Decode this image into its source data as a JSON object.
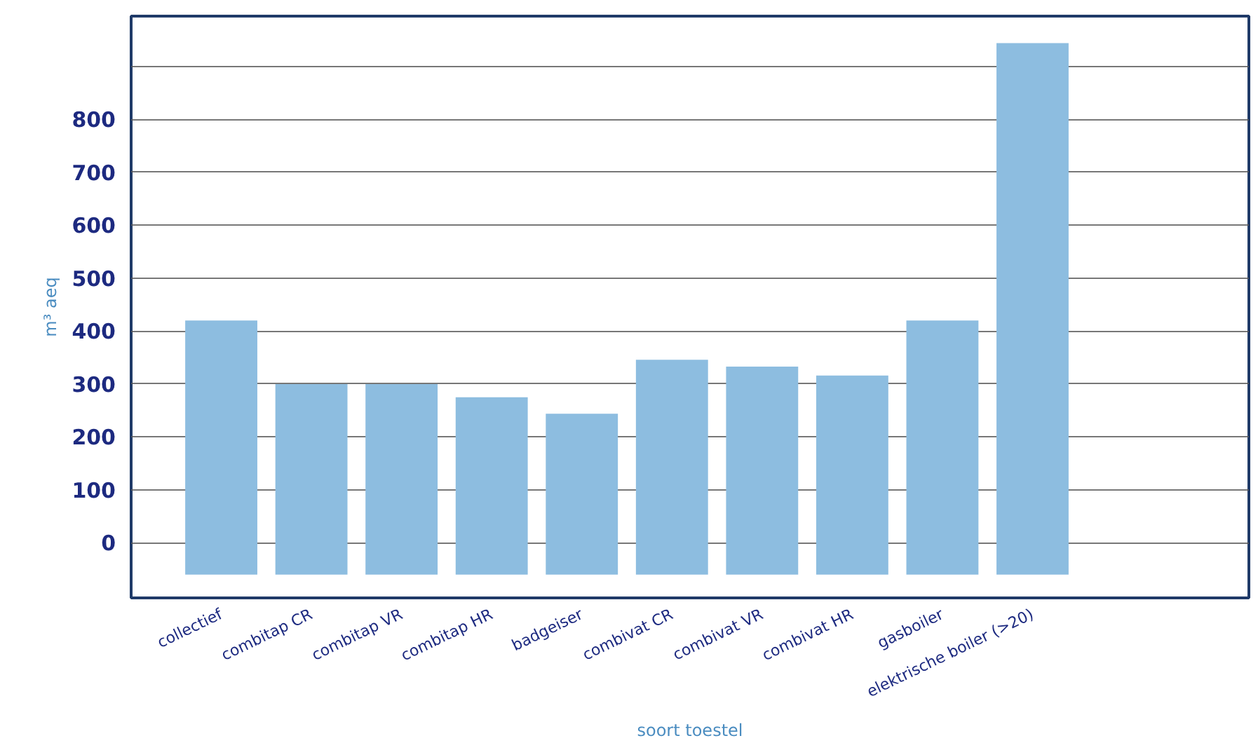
{
  "chart_data": {
    "type": "bar",
    "xlabel": "soort toestel",
    "ylabel": "m³ aeq",
    "categories": [
      "collectief",
      "combitap CR",
      "combitap VR",
      "combitap HR",
      "badgeiser",
      "combivat CR",
      "combivat VR",
      "combivat HR",
      "gasboiler",
      "elektrische boiler (>20)"
    ],
    "base": [
      -60,
      -60,
      -60,
      -60,
      -60,
      -60,
      -60,
      -60,
      -60,
      -60
    ],
    "values": [
      480,
      360,
      360,
      335,
      304,
      406,
      393,
      376,
      480,
      1004
    ],
    "color": "#8dbde0",
    "ylim": [
      -104,
      995
    ],
    "yticks": [
      0,
      100,
      200,
      300,
      400,
      500,
      600,
      700,
      800,
      {
        "value": 900,
        "label": null
      }
    ],
    "grid": "y"
  }
}
